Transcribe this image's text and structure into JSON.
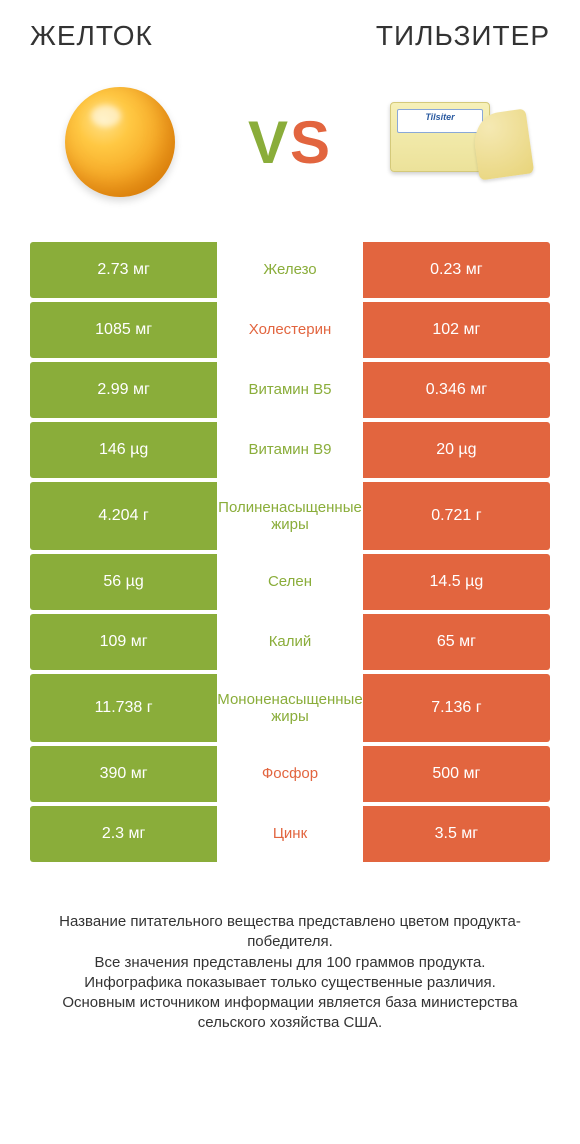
{
  "colors": {
    "left_bar": "#8aad3a",
    "right_bar": "#e2653f",
    "mid_bg": "#ffffff",
    "text_dark": "#333333",
    "text_light": "#ffffff"
  },
  "header": {
    "left_title": "Желток",
    "right_title": "Тильзитер"
  },
  "vs": {
    "v": "V",
    "s": "S"
  },
  "rows": [
    {
      "left": "2.73 мг",
      "label": "Железо",
      "right": "0.23 мг",
      "winner": "left",
      "tall": false
    },
    {
      "left": "1085 мг",
      "label": "Холестерин",
      "right": "102 мг",
      "winner": "right",
      "tall": false
    },
    {
      "left": "2.99 мг",
      "label": "Витамин B5",
      "right": "0.346 мг",
      "winner": "left",
      "tall": false
    },
    {
      "left": "146 µg",
      "label": "Витамин B9",
      "right": "20 µg",
      "winner": "left",
      "tall": false
    },
    {
      "left": "4.204 г",
      "label": "Полиненасыщенные жиры",
      "right": "0.721 г",
      "winner": "left",
      "tall": true
    },
    {
      "left": "56 µg",
      "label": "Селен",
      "right": "14.5 µg",
      "winner": "left",
      "tall": false
    },
    {
      "left": "109 мг",
      "label": "Калий",
      "right": "65 мг",
      "winner": "left",
      "tall": false
    },
    {
      "left": "11.738 г",
      "label": "Мононенасыщенные жиры",
      "right": "7.136 г",
      "winner": "left",
      "tall": true
    },
    {
      "left": "390 мг",
      "label": "Фосфор",
      "right": "500 мг",
      "winner": "right",
      "tall": false
    },
    {
      "left": "2.3 мг",
      "label": "Цинк",
      "right": "3.5 мг",
      "winner": "right",
      "tall": false
    }
  ],
  "footnote": {
    "l1": "Название питательного вещества представлено цветом продукта-победителя.",
    "l2": "Все значения представлены для 100 граммов продукта.",
    "l3": "Инфографика показывает только существенные различия.",
    "l4": "Основным источником информации является база министерства сельского хозяйства США."
  }
}
